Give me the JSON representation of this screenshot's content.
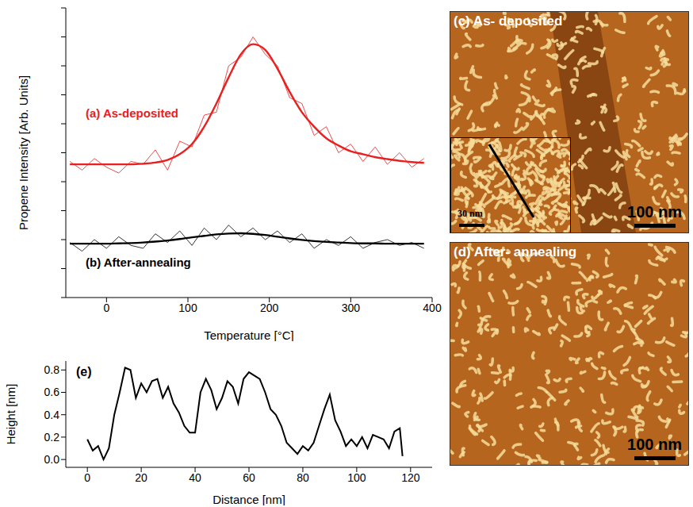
{
  "chart_data": [
    {
      "type": "line",
      "x_label": "Temperature [°C]",
      "y_label": "Propene Intensity [Arb. Units]",
      "x": [
        -45,
        -30,
        -15,
        0,
        15,
        30,
        45,
        60,
        75,
        90,
        105,
        120,
        135,
        150,
        165,
        180,
        195,
        210,
        225,
        240,
        255,
        270,
        285,
        300,
        315,
        330,
        345,
        360,
        375,
        390
      ],
      "series": [
        {
          "color": "#e8201f",
          "values": [
            4.7,
            4.4,
            4.8,
            4.5,
            4.3,
            4.7,
            4.6,
            5.1,
            4.4,
            5.4,
            5.2,
            6.3,
            6.4,
            8.0,
            8.3,
            9.0,
            8.4,
            8.0,
            6.9,
            6.7,
            5.6,
            5.9,
            5.0,
            5.3,
            4.7,
            5.2,
            4.6,
            5.0,
            4.5,
            4.8
          ]
        },
        {
          "color": "#e8201f",
          "values": [
            4.6,
            4.6,
            4.6,
            4.6,
            4.6,
            4.6,
            4.62,
            4.66,
            4.75,
            4.95,
            5.3,
            5.9,
            6.7,
            7.6,
            8.4,
            8.75,
            8.55,
            7.9,
            7.1,
            6.4,
            5.9,
            5.5,
            5.25,
            5.05,
            4.95,
            4.85,
            4.78,
            4.72,
            4.68,
            4.65
          ]
        },
        {
          "color": "#000000",
          "values": [
            1.9,
            1.6,
            2.0,
            1.7,
            2.1,
            1.8,
            1.7,
            2.2,
            1.9,
            2.3,
            1.8,
            2.4,
            2.0,
            2.5,
            2.1,
            2.4,
            2.0,
            2.3,
            1.9,
            2.2,
            1.7,
            2.0,
            1.8,
            2.1,
            1.7,
            1.9,
            2.0,
            1.8,
            1.9,
            1.7
          ]
        },
        {
          "color": "#000000",
          "values": [
            1.86,
            1.86,
            1.86,
            1.86,
            1.87,
            1.88,
            1.9,
            1.93,
            1.97,
            2.02,
            2.08,
            2.13,
            2.18,
            2.21,
            2.22,
            2.2,
            2.16,
            2.1,
            2.04,
            1.99,
            1.95,
            1.92,
            1.9,
            1.88,
            1.87,
            1.87,
            1.86,
            1.86,
            1.86,
            1.86
          ]
        }
      ],
      "xlim": [
        -50,
        400
      ],
      "xticks": [
        0,
        100,
        200,
        300,
        400
      ],
      "ylim": [
        0,
        10
      ],
      "yticks": [
        0,
        1,
        2,
        3,
        4,
        5,
        6,
        7,
        8,
        9,
        10
      ],
      "tick_labels": "x",
      "annotations": [
        {
          "text": "(a) As-deposited",
          "color": "#e8201f"
        },
        {
          "text": "(b) After-annealing",
          "color": "#000000"
        }
      ]
    },
    {
      "type": "line",
      "title": "(e)",
      "x_label": "Distance [nm]",
      "y_label": "Height [nm]",
      "x": [
        0,
        2,
        4,
        6,
        8,
        10,
        12,
        14,
        16,
        18,
        20,
        22,
        24,
        26,
        28,
        30,
        32,
        34,
        36,
        38,
        40,
        42,
        44,
        46,
        48,
        50,
        52,
        54,
        56,
        58,
        60,
        62,
        64,
        66,
        68,
        70,
        72,
        74,
        76,
        78,
        80,
        82,
        84,
        86,
        88,
        90,
        92,
        94,
        96,
        98,
        100,
        102,
        104,
        106,
        108,
        110,
        112,
        114,
        116,
        117
      ],
      "series": [
        {
          "color": "#000000",
          "values": [
            0.18,
            0.08,
            0.12,
            0.0,
            0.1,
            0.4,
            0.6,
            0.82,
            0.8,
            0.55,
            0.68,
            0.6,
            0.7,
            0.72,
            0.55,
            0.65,
            0.5,
            0.42,
            0.3,
            0.24,
            0.24,
            0.6,
            0.72,
            0.62,
            0.45,
            0.55,
            0.7,
            0.65,
            0.5,
            0.72,
            0.78,
            0.75,
            0.72,
            0.6,
            0.45,
            0.4,
            0.3,
            0.15,
            0.1,
            0.05,
            0.12,
            0.08,
            0.15,
            0.3,
            0.45,
            0.58,
            0.35,
            0.25,
            0.12,
            0.18,
            0.12,
            0.2,
            0.1,
            0.22,
            0.2,
            0.18,
            0.1,
            0.25,
            0.28,
            0.03
          ]
        }
      ],
      "xlim": [
        -8,
        128
      ],
      "xticks": [
        0,
        20,
        40,
        60,
        80,
        100,
        120
      ],
      "ylim": [
        -0.07,
        0.88
      ],
      "yticks": [
        {
          "value": 0,
          "label": "0.0"
        },
        0.2,
        0.4,
        0.6,
        0.8
      ]
    }
  ],
  "images": [
    {
      "label": "(c) As- deposited",
      "scale_bar": "100 nm",
      "inset": {
        "scale_bar": "30 nm"
      }
    },
    {
      "label": "(d) After- annealing",
      "scale_bar": "100 nm"
    }
  ]
}
